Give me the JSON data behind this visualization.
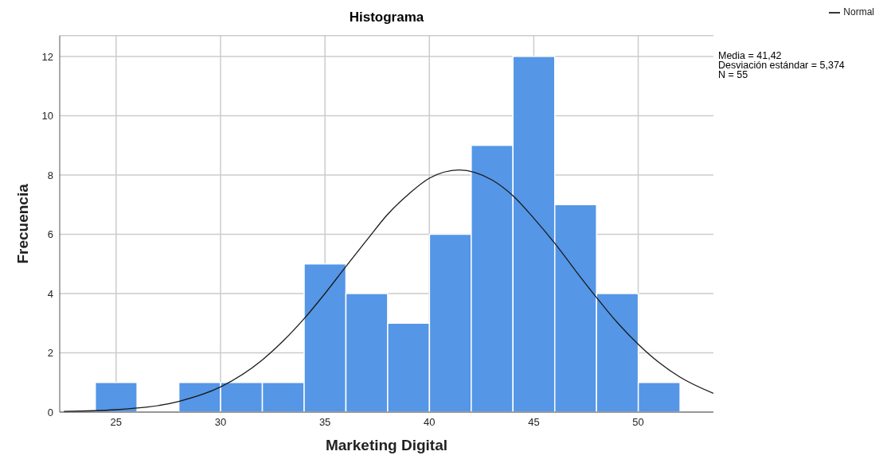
{
  "chart_data": {
    "type": "histogram",
    "title": "Histograma",
    "xlabel": "Marketing Digital",
    "ylabel": "Frecuencia",
    "bins": [
      24,
      26,
      28,
      30,
      32,
      34,
      36,
      38,
      40,
      42,
      44,
      46,
      48,
      50,
      52
    ],
    "values": [
      1,
      0,
      1,
      1,
      1,
      5,
      4,
      3,
      6,
      9,
      12,
      7,
      4,
      1
    ],
    "color": "#5596e6",
    "series": [
      {
        "name": "Normal",
        "type": "line",
        "color": "#1a1a1a",
        "x": [
          22.5,
          25,
          28,
          30,
          32,
          33,
          34,
          35,
          36,
          37,
          38,
          39,
          40,
          41.42,
          43,
          44,
          45,
          46,
          47,
          48,
          49,
          50,
          51,
          52,
          53.6
        ],
        "values": [
          0.02,
          0.08,
          0.36,
          0.85,
          1.76,
          2.4,
          3.15,
          4.0,
          4.91,
          5.8,
          6.67,
          7.35,
          7.89,
          8.17,
          7.83,
          7.3,
          6.54,
          5.7,
          4.77,
          3.87,
          3.02,
          2.29,
          1.67,
          1.18,
          0.63
        ]
      }
    ],
    "xlim": [
      22.3,
      53.6
    ],
    "xticks": [
      25,
      30,
      35,
      40,
      45,
      50
    ],
    "ylim": [
      0,
      12.7
    ],
    "yticks": [
      0,
      2,
      4,
      6,
      8,
      10,
      12
    ],
    "grid": true,
    "legend": "top right",
    "marker": "none",
    "line_style": "solid",
    "annotations": [
      "Media = 41,42",
      "Desviación estándar = 5,374",
      "N = 55"
    ]
  }
}
